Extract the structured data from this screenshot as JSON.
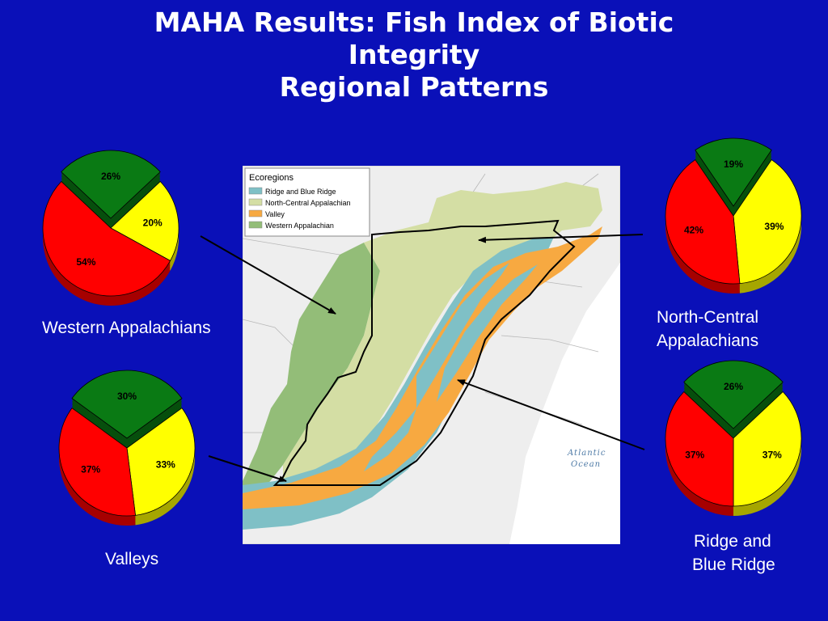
{
  "slide": {
    "title_lines": [
      "MAHA Results:  Fish Index of Biotic",
      "Integrity",
      "Regional Patterns"
    ]
  },
  "colors": {
    "background": "#0a10b8",
    "green": "#0a7a14",
    "yellow": "#ffff00",
    "red": "#ff0000",
    "ridge_blue_ridge": "#7fc0c6",
    "north_central": "#d4dea4",
    "valley": "#f7a941",
    "western_appalachian": "#93bd78"
  },
  "chart_data": [
    {
      "type": "pie",
      "region": "Western Appalachians",
      "slices": [
        {
          "label": "26%",
          "value": 26,
          "color": "#0a7a14",
          "exploded": true
        },
        {
          "label": "20%",
          "value": 20,
          "color": "#ffff00"
        },
        {
          "label": "54%",
          "value": 54,
          "color": "#ff0000"
        }
      ]
    },
    {
      "type": "pie",
      "region": "North-Central Appalachians",
      "slices": [
        {
          "label": "19%",
          "value": 19,
          "color": "#0a7a14",
          "exploded": true
        },
        {
          "label": "39%",
          "value": 39,
          "color": "#ffff00"
        },
        {
          "label": "42%",
          "value": 42,
          "color": "#ff0000"
        }
      ]
    },
    {
      "type": "pie",
      "region": "Valleys",
      "slices": [
        {
          "label": "30%",
          "value": 30,
          "color": "#0a7a14",
          "exploded": true
        },
        {
          "label": "33%",
          "value": 33,
          "color": "#ffff00"
        },
        {
          "label": "37%",
          "value": 37,
          "color": "#ff0000"
        }
      ]
    },
    {
      "type": "pie",
      "region": "Ridge and Blue Ridge",
      "slices": [
        {
          "label": "26%",
          "value": 26,
          "color": "#0a7a14",
          "exploded": true
        },
        {
          "label": "37%",
          "value": 37,
          "color": "#ffff00"
        },
        {
          "label": "37%",
          "value": 37,
          "color": "#ff0000"
        }
      ]
    }
  ],
  "labels": {
    "western": "Western Appalachians",
    "north_central_1": "North-Central",
    "north_central_2": "Appalachians",
    "valleys": "Valleys",
    "ridge_1": "Ridge and",
    "ridge_2": "Blue Ridge"
  },
  "map": {
    "legend_title": "Ecoregions",
    "legend_items": [
      {
        "label": "Ridge and Blue Ridge",
        "color": "#7fc0c6"
      },
      {
        "label": "North-Central  Appalachian",
        "color": "#d4dea4"
      },
      {
        "label": "Valley",
        "color": "#f7a941"
      },
      {
        "label": "Western Appalachian",
        "color": "#93bd78"
      }
    ],
    "ocean_label_1": "Atlantic",
    "ocean_label_2": "Ocean"
  }
}
